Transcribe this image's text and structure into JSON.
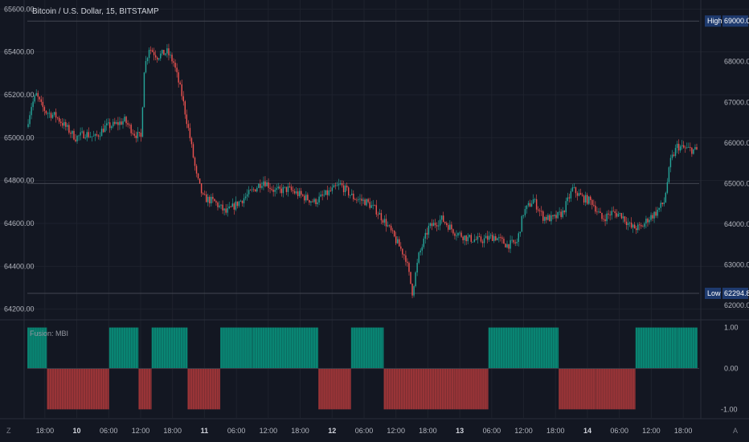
{
  "header": {
    "symbol_title": "Bitcoin / U.S. Dollar, 15, BITSTAMP",
    "indicator_title": "Fusion: MBI"
  },
  "corners": {
    "bottom_left": "Z",
    "bottom_right": "A"
  },
  "colors": {
    "background": "#131722",
    "grid": "#1e222d",
    "up": "#26a69a",
    "down": "#ef5350",
    "level_line": "#434651",
    "tag_bg": "#1e3a6e",
    "mbi_green": "#089981",
    "mbi_red": "#b2393b"
  },
  "chart_data": [
    {
      "type": "candlestick",
      "title": "Bitcoin / U.S. Dollar, 15, BITSTAMP",
      "y_axis_left": {
        "ticks": [
          "64200.00",
          "64400.00",
          "64600.00",
          "64800.00",
          "65000.00",
          "65200.00",
          "65400.00",
          "65600.00"
        ],
        "range": [
          64180,
          65620
        ]
      },
      "y_axis_right": {
        "ticks": [
          "62000.00",
          "63000.00",
          "64000.00",
          "65000.00",
          "66000.00",
          "67000.00",
          "68000.00"
        ],
        "range": [
          61800,
          69400
        ]
      },
      "x_axis": {
        "labels": [
          {
            "text": "18:00",
            "bold": false
          },
          {
            "text": "10",
            "bold": true
          },
          {
            "text": "06:00",
            "bold": false
          },
          {
            "text": "12:00",
            "bold": false
          },
          {
            "text": "18:00",
            "bold": false
          },
          {
            "text": "11",
            "bold": true
          },
          {
            "text": "06:00",
            "bold": false
          },
          {
            "text": "12:00",
            "bold": false
          },
          {
            "text": "18:00",
            "bold": false
          },
          {
            "text": "12",
            "bold": true
          },
          {
            "text": "06:00",
            "bold": false
          },
          {
            "text": "12:00",
            "bold": false
          },
          {
            "text": "18:00",
            "bold": false
          },
          {
            "text": "13",
            "bold": true
          },
          {
            "text": "06:00",
            "bold": false
          },
          {
            "text": "12:00",
            "bold": false
          },
          {
            "text": "18:00",
            "bold": false
          },
          {
            "text": "14",
            "bold": true
          },
          {
            "text": "06:00",
            "bold": false
          },
          {
            "text": "12:00",
            "bold": false
          },
          {
            "text": "18:00",
            "bold": false
          }
        ]
      },
      "levels": [
        {
          "label": "High",
          "value": "69000.00",
          "axis": "right",
          "value_num": 69000
        },
        {
          "label": "Low",
          "value": "62294.84",
          "axis": "right",
          "value_num": 62294.84
        }
      ],
      "reference_line": {
        "axis": "right",
        "value": 65000
      },
      "price_path": [
        [
          0,
          65050
        ],
        [
          3,
          65150
        ],
        [
          6,
          65200
        ],
        [
          9,
          65150
        ],
        [
          12,
          65120
        ],
        [
          18,
          65100
        ],
        [
          24,
          65050
        ],
        [
          30,
          65000
        ],
        [
          36,
          65020
        ],
        [
          42,
          65000
        ],
        [
          48,
          65050
        ],
        [
          54,
          65060
        ],
        [
          60,
          65080
        ],
        [
          66,
          65020
        ],
        [
          70,
          65000
        ],
        [
          72,
          65320
        ],
        [
          75,
          65420
        ],
        [
          80,
          65380
        ],
        [
          86,
          65400
        ],
        [
          90,
          65350
        ],
        [
          95,
          65200
        ],
        [
          100,
          65000
        ],
        [
          104,
          64820
        ],
        [
          108,
          64720
        ],
        [
          115,
          64700
        ],
        [
          122,
          64650
        ],
        [
          130,
          64700
        ],
        [
          138,
          64750
        ],
        [
          145,
          64800
        ],
        [
          152,
          64750
        ],
        [
          160,
          64760
        ],
        [
          168,
          64730
        ],
        [
          176,
          64700
        ],
        [
          184,
          64740
        ],
        [
          192,
          64780
        ],
        [
          200,
          64720
        ],
        [
          208,
          64700
        ],
        [
          214,
          64660
        ],
        [
          220,
          64600
        ],
        [
          226,
          64520
        ],
        [
          232,
          64440
        ],
        [
          236,
          64280
        ],
        [
          240,
          64450
        ],
        [
          246,
          64580
        ],
        [
          254,
          64620
        ],
        [
          262,
          64560
        ],
        [
          270,
          64530
        ],
        [
          278,
          64520
        ],
        [
          286,
          64540
        ],
        [
          294,
          64500
        ],
        [
          300,
          64510
        ],
        [
          304,
          64650
        ],
        [
          310,
          64710
        ],
        [
          316,
          64630
        ],
        [
          322,
          64620
        ],
        [
          328,
          64650
        ],
        [
          334,
          64760
        ],
        [
          340,
          64720
        ],
        [
          346,
          64700
        ],
        [
          352,
          64620
        ],
        [
          358,
          64650
        ],
        [
          364,
          64640
        ],
        [
          370,
          64580
        ],
        [
          376,
          64580
        ],
        [
          380,
          64620
        ],
        [
          385,
          64650
        ],
        [
          390,
          64700
        ],
        [
          394,
          64890
        ],
        [
          398,
          64960
        ],
        [
          402,
          64950
        ],
        [
          406,
          64945
        ],
        [
          410,
          64940
        ]
      ]
    },
    {
      "type": "histogram",
      "title": "Fusion: MBI",
      "y_axis": {
        "ticks": [
          "1.00",
          "0.00",
          "-1.00"
        ],
        "range": [
          -1.15,
          1.05
        ]
      },
      "segments": [
        {
          "start": 0,
          "end": 12,
          "value": 1
        },
        {
          "start": 12,
          "end": 50,
          "value": -1
        },
        {
          "start": 50,
          "end": 68,
          "value": 1
        },
        {
          "start": 68,
          "end": 76,
          "value": -1
        },
        {
          "start": 76,
          "end": 98,
          "value": 1
        },
        {
          "start": 98,
          "end": 118,
          "value": -1
        },
        {
          "start": 118,
          "end": 138,
          "value": 1
        },
        {
          "start": 138,
          "end": 178,
          "value": 1
        },
        {
          "start": 178,
          "end": 198,
          "value": -1
        },
        {
          "start": 198,
          "end": 218,
          "value": 1
        },
        {
          "start": 218,
          "end": 262,
          "value": -1
        },
        {
          "start": 262,
          "end": 282,
          "value": -1
        },
        {
          "start": 282,
          "end": 302,
          "value": 1
        },
        {
          "start": 302,
          "end": 325,
          "value": 1
        },
        {
          "start": 325,
          "end": 348,
          "value": -1
        },
        {
          "start": 348,
          "end": 372,
          "value": -1
        },
        {
          "start": 372,
          "end": 398,
          "value": 1
        },
        {
          "start": 398,
          "end": 410,
          "value": 1
        }
      ]
    }
  ]
}
